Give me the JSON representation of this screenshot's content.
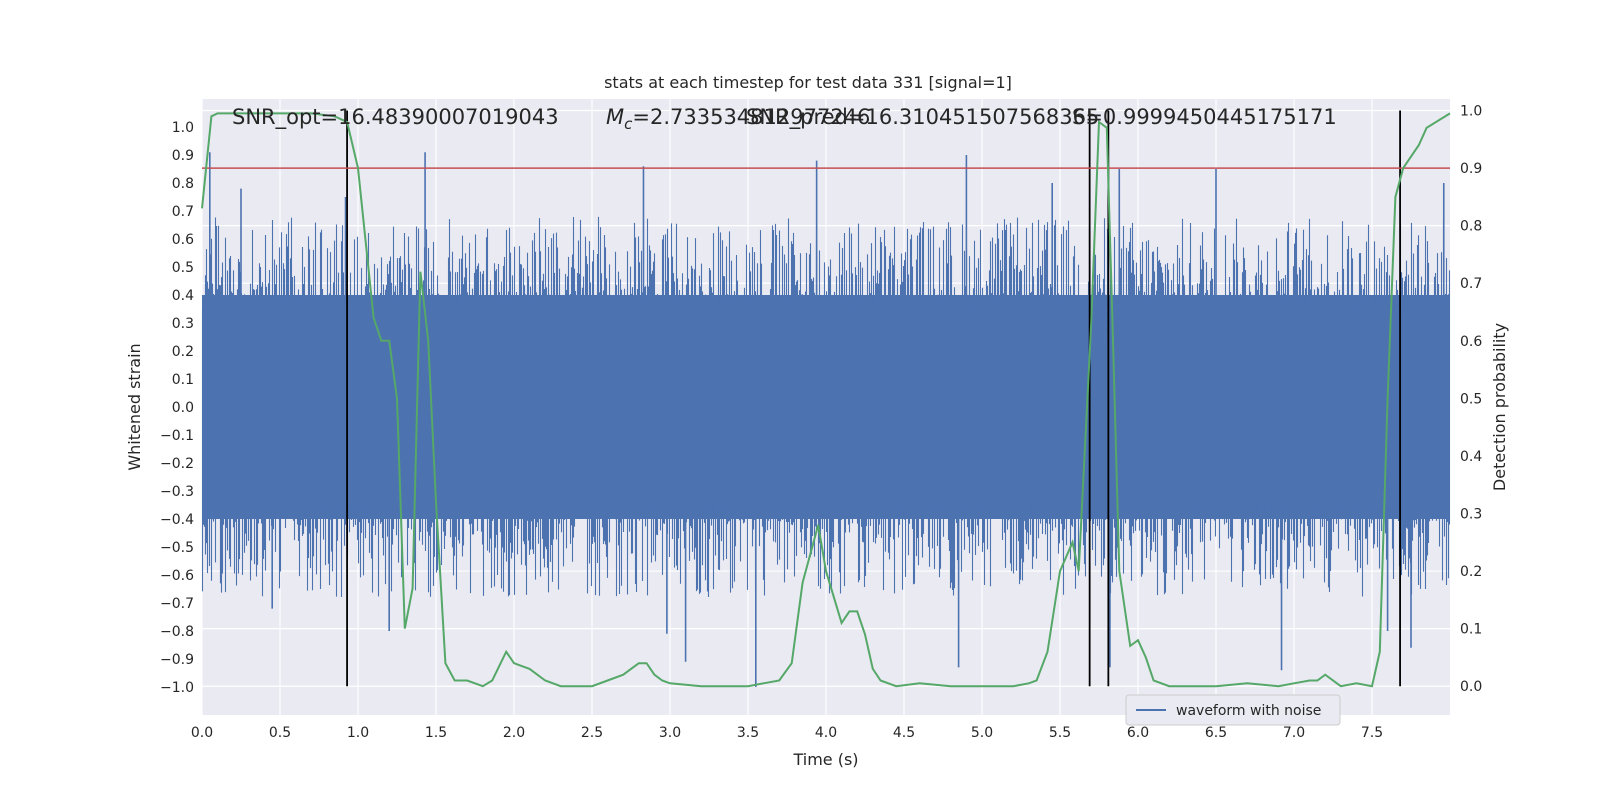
{
  "chart_data": {
    "type": "line",
    "title": "stats at each timestep for test data 331 [signal=1]",
    "xlabel": "Time (s)",
    "ylabel_left": "Whitened strain",
    "ylabel_right": "Detection probability",
    "xlim": [
      0,
      8
    ],
    "ylim_left": [
      -1.1,
      1.1
    ],
    "ylim_right": [
      -0.05,
      1.02
    ],
    "x_ticks": [
      "0.0",
      "0.5",
      "1.0",
      "1.5",
      "2.0",
      "2.5",
      "3.0",
      "3.5",
      "4.0",
      "4.5",
      "5.0",
      "5.5",
      "6.0",
      "6.5",
      "7.0",
      "7.5"
    ],
    "y_left_ticks": [
      "1.0",
      "0.9",
      "0.8",
      "0.7",
      "0.6",
      "0.5",
      "0.4",
      "0.3",
      "0.2",
      "0.1",
      "0.0",
      "−0.1",
      "−0.2",
      "−0.3",
      "−0.4",
      "−0.5",
      "−0.6",
      "−0.7",
      "−0.8",
      "−0.9",
      "−1.0"
    ],
    "y_right_ticks": [
      "1.0",
      "0.9",
      "0.8",
      "0.7",
      "0.6",
      "0.5",
      "0.4",
      "0.3",
      "0.2",
      "0.1",
      "0.0"
    ],
    "grid": true,
    "legend": {
      "placement": "bottom-right",
      "entries": [
        "waveform with noise"
      ]
    },
    "colors": {
      "waveform": "#4c72b0",
      "probability": "#55a868",
      "threshold": "#c44e52",
      "markers": "#000000",
      "background": "#eaeaf2",
      "grid": "#ffffff"
    },
    "annotations": {
      "snr_opt": "SNR_opt=16.48390007019043",
      "mc_prefix": "M",
      "mc_subscript": "c",
      "mc_value": "=2.733534812977246",
      "snr_pred": "SNR_pred=16.310451507568365",
      "s_value": "S=0.9999450445175171"
    },
    "threshold": {
      "axis": "right",
      "value": 0.9
    },
    "vertical_markers_s": [
      0.93,
      5.69,
      5.81,
      7.68
    ],
    "series": [
      {
        "name": "waveform with noise",
        "axis": "left",
        "duration_s": 8.0,
        "envelope_dense": 0.4,
        "noise_peak_min": 0.35,
        "noise_peak_max": 0.68,
        "spikes": [
          {
            "t": 0.05,
            "v": 0.91
          },
          {
            "t": 0.25,
            "v": 0.78
          },
          {
            "t": 0.92,
            "v": 0.75
          },
          {
            "t": 1.43,
            "v": 0.91
          },
          {
            "t": 2.83,
            "v": 0.86
          },
          {
            "t": 3.94,
            "v": 0.88
          },
          {
            "t": 4.9,
            "v": 0.9
          },
          {
            "t": 5.45,
            "v": 0.8
          },
          {
            "t": 5.88,
            "v": 0.85
          },
          {
            "t": 6.5,
            "v": 0.85
          },
          {
            "t": 7.96,
            "v": 0.8
          },
          {
            "t": 0.12,
            "v": -0.63
          },
          {
            "t": 1.2,
            "v": -0.8
          },
          {
            "t": 2.98,
            "v": -0.81
          },
          {
            "t": 3.1,
            "v": -0.91
          },
          {
            "t": 3.55,
            "v": -1.0
          },
          {
            "t": 4.85,
            "v": -0.93
          },
          {
            "t": 5.82,
            "v": -0.93
          },
          {
            "t": 6.92,
            "v": -0.94
          },
          {
            "t": 7.6,
            "v": -0.8
          },
          {
            "t": 7.75,
            "v": -0.86
          },
          {
            "t": 0.45,
            "v": -0.72
          }
        ]
      },
      {
        "name": "detection probability",
        "axis": "right",
        "x": [
          0.0,
          0.06,
          0.1,
          0.3,
          0.5,
          0.7,
          0.85,
          0.93,
          1.0,
          1.1,
          1.15,
          1.2,
          1.25,
          1.3,
          1.35,
          1.4,
          1.45,
          1.5,
          1.56,
          1.62,
          1.7,
          1.8,
          1.86,
          1.95,
          2.0,
          2.05,
          2.1,
          2.2,
          2.3,
          2.5,
          2.6,
          2.7,
          2.75,
          2.8,
          2.85,
          2.9,
          2.95,
          3.0,
          3.2,
          3.5,
          3.6,
          3.7,
          3.78,
          3.85,
          3.9,
          3.95,
          4.0,
          4.1,
          4.15,
          4.2,
          4.25,
          4.3,
          4.35,
          4.45,
          4.6,
          4.8,
          5.0,
          5.2,
          5.3,
          5.35,
          5.42,
          5.5,
          5.58,
          5.62,
          5.7,
          5.75,
          5.8,
          5.84,
          5.88,
          5.95,
          6.0,
          6.05,
          6.1,
          6.2,
          6.5,
          6.7,
          6.9,
          7.0,
          7.1,
          7.15,
          7.2,
          7.3,
          7.4,
          7.5,
          7.55,
          7.6,
          7.65,
          7.7,
          7.8,
          7.85,
          8.0
        ],
        "values": [
          0.83,
          0.99,
          0.995,
          0.995,
          0.995,
          0.995,
          0.99,
          0.98,
          0.9,
          0.64,
          0.6,
          0.6,
          0.5,
          0.1,
          0.17,
          0.72,
          0.6,
          0.32,
          0.04,
          0.01,
          0.01,
          0.0,
          0.01,
          0.06,
          0.04,
          0.035,
          0.03,
          0.01,
          0.0,
          0.0,
          0.01,
          0.02,
          0.03,
          0.04,
          0.04,
          0.02,
          0.01,
          0.005,
          0.0,
          0.0,
          0.005,
          0.01,
          0.04,
          0.18,
          0.23,
          0.28,
          0.2,
          0.11,
          0.13,
          0.13,
          0.09,
          0.03,
          0.01,
          0.0,
          0.005,
          0.0,
          0.0,
          0.0,
          0.005,
          0.01,
          0.06,
          0.2,
          0.25,
          0.2,
          0.63,
          0.98,
          0.97,
          0.6,
          0.2,
          0.07,
          0.08,
          0.05,
          0.01,
          0.0,
          0.0,
          0.005,
          0.0,
          0.005,
          0.01,
          0.01,
          0.02,
          0.0,
          0.005,
          0.0,
          0.06,
          0.5,
          0.85,
          0.9,
          0.94,
          0.97,
          0.995
        ]
      }
    ]
  }
}
